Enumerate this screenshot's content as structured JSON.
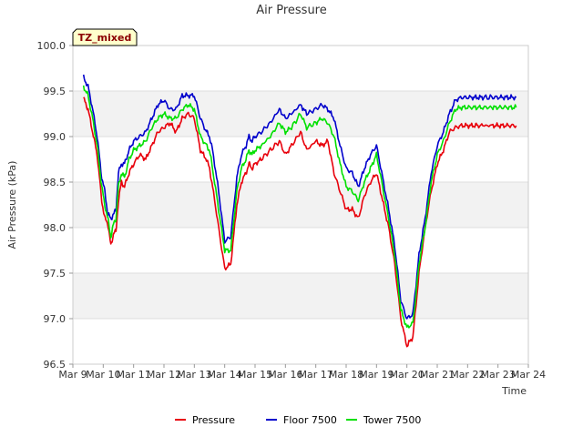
{
  "chart_data": {
    "type": "line",
    "title": "Air Pressure",
    "xlabel": "Time",
    "ylabel": "Air Pressure (kPa)",
    "badge": "TZ_mixed",
    "ylim": [
      96.5,
      100.0
    ],
    "yticks": [
      "96.5",
      "97.0",
      "97.5",
      "98.0",
      "98.5",
      "99.0",
      "99.5",
      "100.0"
    ],
    "xlim": [
      0,
      15
    ],
    "xticks": [
      "Mar 9",
      "Mar 10",
      "Mar 11",
      "Mar 12",
      "Mar 13",
      "Mar 14",
      "Mar 15",
      "Mar 16",
      "Mar 17",
      "Mar 18",
      "Mar 19",
      "Mar 20",
      "Mar 21",
      "Mar 22",
      "Mar 23",
      "Mar 24"
    ],
    "legend_position": "bottom-center",
    "series": [
      {
        "name": "Pressure",
        "color": "#e8000b",
        "x": [
          0.35,
          0.5,
          0.65,
          0.8,
          0.95,
          1.05,
          1.15,
          1.25,
          1.35,
          1.42,
          1.5,
          1.6,
          1.7,
          1.85,
          2.0,
          2.2,
          2.4,
          2.6,
          2.8,
          3.0,
          3.2,
          3.4,
          3.6,
          3.8,
          4.0,
          4.2,
          4.4,
          4.5,
          4.6,
          4.8,
          5.0,
          5.2,
          5.4,
          5.55,
          5.7,
          5.8,
          5.9,
          6.0,
          6.2,
          6.5,
          6.8,
          7.0,
          7.2,
          7.5,
          7.7,
          8.0,
          8.2,
          8.4,
          8.6,
          8.8,
          9.0,
          9.2,
          9.4,
          9.6,
          9.8,
          10.0,
          10.2,
          10.4,
          10.6,
          10.8,
          11.0,
          11.2,
          11.4,
          11.6,
          11.8,
          12.0,
          12.2,
          12.4,
          12.6,
          12.8,
          13.0,
          13.2,
          13.3,
          13.5,
          13.8,
          14.0,
          14.2,
          14.4,
          14.6
        ],
        "y": [
          99.42,
          99.3,
          99.05,
          98.8,
          98.3,
          98.1,
          98.05,
          97.8,
          97.95,
          97.95,
          98.3,
          98.5,
          98.45,
          98.6,
          98.7,
          98.8,
          98.75,
          98.9,
          99.05,
          99.1,
          99.15,
          99.05,
          99.2,
          99.25,
          99.2,
          98.85,
          98.75,
          98.65,
          98.45,
          98.0,
          97.55,
          97.6,
          98.25,
          98.5,
          98.6,
          98.7,
          98.65,
          98.7,
          98.75,
          98.85,
          98.95,
          98.8,
          98.9,
          99.05,
          98.85,
          98.95,
          98.9,
          98.95,
          98.6,
          98.4,
          98.2,
          98.2,
          98.1,
          98.35,
          98.5,
          98.6,
          98.3,
          98.0,
          97.6,
          97.0,
          96.7,
          96.8,
          97.5,
          98.0,
          98.4,
          98.7,
          98.85,
          99.05,
          99.1,
          99.12,
          99.12,
          99.12,
          99.12,
          99.12,
          99.12,
          99.12,
          99.12,
          99.12,
          99.12
        ]
      },
      {
        "name": "Floor 7500",
        "color": "#0000cc",
        "x": [
          0.35,
          0.5,
          0.65,
          0.8,
          0.95,
          1.05,
          1.15,
          1.25,
          1.35,
          1.42,
          1.5,
          1.6,
          1.7,
          1.85,
          2.0,
          2.2,
          2.4,
          2.6,
          2.8,
          3.0,
          3.2,
          3.4,
          3.6,
          3.8,
          4.0,
          4.2,
          4.4,
          4.5,
          4.6,
          4.8,
          5.0,
          5.2,
          5.4,
          5.55,
          5.7,
          5.8,
          5.9,
          6.0,
          6.2,
          6.5,
          6.8,
          7.0,
          7.2,
          7.5,
          7.7,
          8.0,
          8.2,
          8.4,
          8.6,
          8.8,
          9.0,
          9.2,
          9.4,
          9.6,
          9.8,
          10.0,
          10.2,
          10.4,
          10.6,
          10.8,
          11.0,
          11.2,
          11.4,
          11.6,
          11.8,
          12.0,
          12.2,
          12.4,
          12.6,
          12.8,
          13.0,
          13.2,
          13.3,
          13.5,
          13.8,
          14.0,
          14.2,
          14.4,
          14.6
        ],
        "y": [
          99.65,
          99.55,
          99.3,
          99.0,
          98.55,
          98.4,
          98.15,
          98.1,
          98.15,
          98.2,
          98.6,
          98.7,
          98.7,
          98.85,
          98.95,
          99.0,
          99.05,
          99.2,
          99.35,
          99.4,
          99.3,
          99.3,
          99.45,
          99.45,
          99.45,
          99.2,
          99.05,
          99.0,
          98.85,
          98.4,
          97.85,
          97.9,
          98.55,
          98.8,
          98.9,
          99.0,
          98.95,
          99.0,
          99.05,
          99.15,
          99.3,
          99.2,
          99.25,
          99.35,
          99.25,
          99.3,
          99.35,
          99.3,
          99.2,
          98.9,
          98.65,
          98.6,
          98.45,
          98.65,
          98.8,
          98.9,
          98.55,
          98.2,
          97.8,
          97.2,
          97.0,
          97.05,
          97.7,
          98.1,
          98.6,
          98.9,
          99.05,
          99.25,
          99.4,
          99.43,
          99.43,
          99.43,
          99.43,
          99.43,
          99.43,
          99.43,
          99.43,
          99.43,
          99.43
        ]
      },
      {
        "name": "Tower 7500",
        "color": "#00e000",
        "x": [
          0.35,
          0.5,
          0.65,
          0.8,
          0.95,
          1.05,
          1.15,
          1.25,
          1.35,
          1.42,
          1.5,
          1.6,
          1.7,
          1.85,
          2.0,
          2.2,
          2.4,
          2.6,
          2.8,
          3.0,
          3.2,
          3.4,
          3.6,
          3.8,
          4.0,
          4.2,
          4.4,
          4.5,
          4.6,
          4.8,
          5.0,
          5.2,
          5.4,
          5.55,
          5.7,
          5.8,
          5.9,
          6.0,
          6.2,
          6.5,
          6.8,
          7.0,
          7.2,
          7.5,
          7.7,
          8.0,
          8.2,
          8.4,
          8.6,
          8.8,
          9.0,
          9.2,
          9.4,
          9.6,
          9.8,
          10.0,
          10.2,
          10.4,
          10.6,
          10.8,
          11.0,
          11.2,
          11.4,
          11.6,
          11.8,
          12.0,
          12.2,
          12.4,
          12.6,
          12.8,
          13.0,
          13.2,
          13.3,
          13.5,
          13.8,
          14.0,
          14.2,
          14.4,
          14.6
        ],
        "y": [
          99.55,
          99.45,
          99.2,
          98.9,
          98.45,
          98.25,
          98.1,
          97.9,
          98.05,
          98.1,
          98.45,
          98.6,
          98.55,
          98.75,
          98.85,
          98.9,
          98.95,
          99.1,
          99.2,
          99.25,
          99.2,
          99.2,
          99.3,
          99.35,
          99.3,
          99.0,
          98.9,
          98.85,
          98.65,
          98.2,
          97.75,
          97.75,
          98.4,
          98.65,
          98.75,
          98.85,
          98.8,
          98.85,
          98.9,
          99.0,
          99.15,
          99.05,
          99.1,
          99.25,
          99.1,
          99.15,
          99.2,
          99.15,
          99.0,
          98.7,
          98.45,
          98.4,
          98.3,
          98.5,
          98.65,
          98.8,
          98.45,
          98.1,
          97.7,
          97.1,
          96.9,
          96.95,
          97.6,
          98.0,
          98.5,
          98.8,
          98.95,
          99.15,
          99.3,
          99.32,
          99.32,
          99.32,
          99.32,
          99.32,
          99.32,
          99.32,
          99.32,
          99.32,
          99.32
        ]
      }
    ]
  }
}
